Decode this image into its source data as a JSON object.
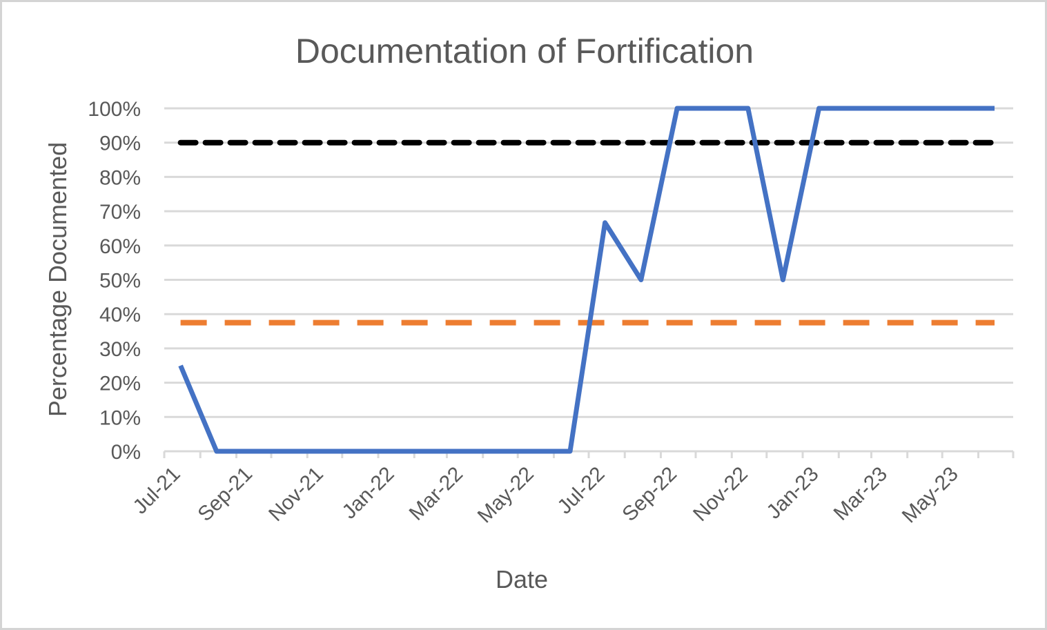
{
  "chart_data": {
    "type": "line",
    "title": "Documentation of Fortification",
    "xlabel": "Date",
    "ylabel": "Percentage Documented",
    "y_tick_labels": [
      "0%",
      "10%",
      "20%",
      "30%",
      "40%",
      "50%",
      "60%",
      "70%",
      "80%",
      "90%",
      "100%"
    ],
    "x_tick_labels": [
      "Jul-21",
      "Sep-21",
      "Nov-21",
      "Jan-22",
      "Mar-22",
      "May-22",
      "Jul-22",
      "Sep-22",
      "Nov-22",
      "Jan-23",
      "Mar-23",
      "May-23"
    ],
    "x_range": [
      "2021-07-01",
      "2023-07-01"
    ],
    "ylim": [
      0,
      1
    ],
    "grid": true,
    "legend": "none",
    "series": [
      {
        "color": "#4472c4",
        "style": "solid",
        "points": [
          {
            "x": "2021-07-15",
            "y": 0.25
          },
          {
            "x": "2021-08-15",
            "y": 0
          },
          {
            "x": "2021-09-15",
            "y": 0
          },
          {
            "x": "2021-10-15",
            "y": 0
          },
          {
            "x": "2021-11-15",
            "y": 0
          },
          {
            "x": "2021-12-15",
            "y": 0
          },
          {
            "x": "2022-01-15",
            "y": 0
          },
          {
            "x": "2022-02-15",
            "y": 0
          },
          {
            "x": "2022-03-15",
            "y": 0
          },
          {
            "x": "2022-04-15",
            "y": 0
          },
          {
            "x": "2022-05-15",
            "y": 0
          },
          {
            "x": "2022-06-15",
            "y": 0
          },
          {
            "x": "2022-07-15",
            "y": 0.6667
          },
          {
            "x": "2022-08-15",
            "y": 0.5
          },
          {
            "x": "2022-09-15",
            "y": 1
          },
          {
            "x": "2022-10-15",
            "y": 1
          },
          {
            "x": "2022-11-15",
            "y": 1
          },
          {
            "x": "2022-12-15",
            "y": 0.5
          },
          {
            "x": "2023-01-15",
            "y": 1
          },
          {
            "x": "2023-02-15",
            "y": 1
          },
          {
            "x": "2023-03-15",
            "y": 1
          },
          {
            "x": "2023-04-15",
            "y": 1
          },
          {
            "x": "2023-05-15",
            "y": 1
          },
          {
            "x": "2023-06-15",
            "y": 1
          }
        ]
      },
      {
        "color": "#ed7d31",
        "style": "dashed",
        "points": [
          {
            "x": "2021-07-15",
            "y": 0.375
          },
          {
            "x": "2023-06-15",
            "y": 0.375
          }
        ]
      },
      {
        "color": "#000000",
        "style": "dotted",
        "points": [
          {
            "x": "2021-07-15",
            "y": 0.9
          },
          {
            "x": "2023-06-15",
            "y": 0.9
          }
        ]
      }
    ]
  }
}
